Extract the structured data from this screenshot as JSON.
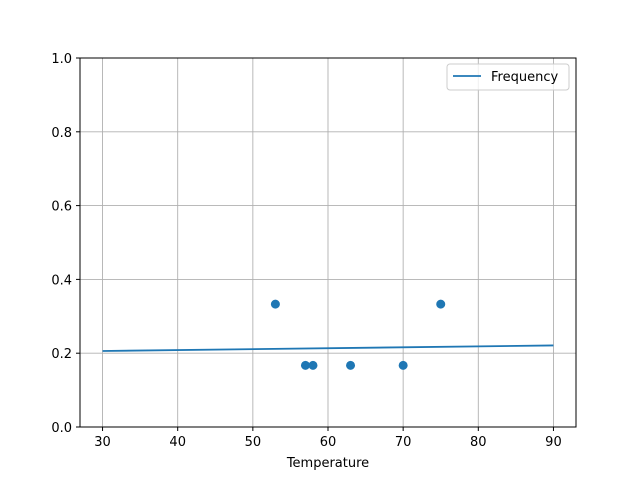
{
  "chart_data": {
    "type": "scatter",
    "title": "",
    "xlabel": "Temperature",
    "ylabel": "",
    "xlim": [
      27,
      93
    ],
    "ylim": [
      0,
      1
    ],
    "xticks": [
      30,
      40,
      50,
      60,
      70,
      80,
      90
    ],
    "yticks": [
      0.0,
      0.2,
      0.4,
      0.6,
      0.8,
      1.0
    ],
    "xtick_labels": [
      "30",
      "40",
      "50",
      "60",
      "70",
      "80",
      "90"
    ],
    "ytick_labels": [
      "0.0",
      "0.2",
      "0.4",
      "0.6",
      "0.8",
      "1.0"
    ],
    "grid": true,
    "legend_position": "top-right",
    "series": [
      {
        "name": "Frequency",
        "kind": "line",
        "color": "#1f77b4",
        "x": [
          30,
          90
        ],
        "y": [
          0.206,
          0.221
        ]
      },
      {
        "kind": "scatter",
        "color": "#1f77b4",
        "x": [
          53,
          57,
          58,
          63,
          70,
          75
        ],
        "y": [
          0.333,
          0.167,
          0.167,
          0.167,
          0.167,
          0.333
        ]
      }
    ]
  }
}
